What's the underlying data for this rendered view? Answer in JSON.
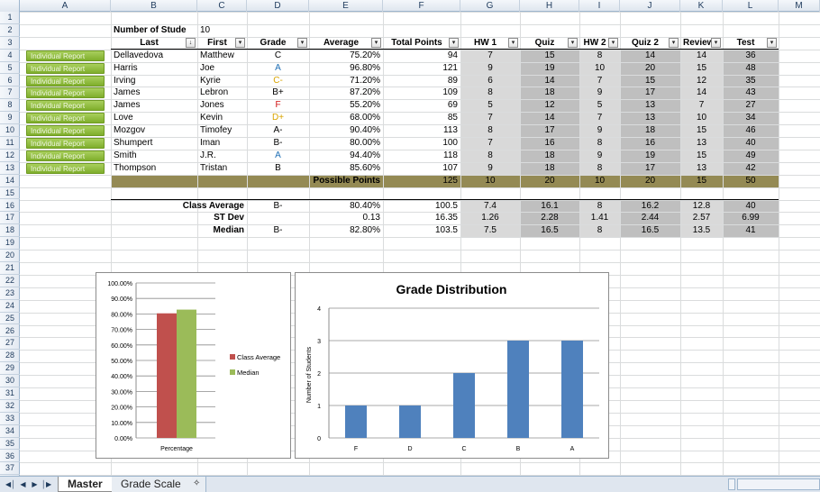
{
  "columns": [
    "A",
    "B",
    "C",
    "D",
    "E",
    "F",
    "G",
    "H",
    "I",
    "J",
    "K",
    "L",
    "M"
  ],
  "rows": [
    "1",
    "2",
    "3",
    "4",
    "5",
    "6",
    "7",
    "8",
    "9",
    "10",
    "11",
    "12",
    "13",
    "14",
    "15",
    "16",
    "17",
    "18",
    "19",
    "20",
    "21",
    "22",
    "23",
    "24",
    "25",
    "26",
    "27",
    "28",
    "29",
    "30",
    "31",
    "32",
    "33",
    "34",
    "35",
    "36",
    "37"
  ],
  "label_num_students": "Number of Stude",
  "num_students": "10",
  "headers": [
    "Last",
    "First",
    "Grade",
    "Average",
    "Total Points",
    "HW 1",
    "Quiz",
    "HW 2",
    "Quiz 2",
    "Review",
    "Test"
  ],
  "report_button_label": "Individual Report",
  "students": [
    {
      "last": "Dellavedova",
      "first": "Matthew",
      "grade": "C",
      "grade_color": "#000000",
      "avg": "75.20%",
      "total": "94",
      "hw1": "7",
      "quiz": "15",
      "hw2": "8",
      "quiz2": "14",
      "review": "14",
      "test": "36"
    },
    {
      "last": "Harris",
      "first": "Joe",
      "grade": "A",
      "grade_color": "#1f6fb5",
      "avg": "96.80%",
      "total": "121",
      "hw1": "9",
      "quiz": "19",
      "hw2": "10",
      "quiz2": "20",
      "review": "15",
      "test": "48"
    },
    {
      "last": "Irving",
      "first": "Kyrie",
      "grade": "C-",
      "grade_color": "#d9a400",
      "avg": "71.20%",
      "total": "89",
      "hw1": "6",
      "quiz": "14",
      "hw2": "7",
      "quiz2": "15",
      "review": "12",
      "test": "35"
    },
    {
      "last": "James",
      "first": "Lebron",
      "grade": "B+",
      "grade_color": "#000000",
      "avg": "87.20%",
      "total": "109",
      "hw1": "8",
      "quiz": "18",
      "hw2": "9",
      "quiz2": "17",
      "review": "14",
      "test": "43"
    },
    {
      "last": "James",
      "first": "Jones",
      "grade": "F",
      "grade_color": "#d01010",
      "avg": "55.20%",
      "total": "69",
      "hw1": "5",
      "quiz": "12",
      "hw2": "5",
      "quiz2": "13",
      "review": "7",
      "test": "27"
    },
    {
      "last": "Love",
      "first": "Kevin",
      "grade": "D+",
      "grade_color": "#d9a400",
      "avg": "68.00%",
      "total": "85",
      "hw1": "7",
      "quiz": "14",
      "hw2": "7",
      "quiz2": "13",
      "review": "10",
      "test": "34"
    },
    {
      "last": "Mozgov",
      "first": "Timofey",
      "grade": "A-",
      "grade_color": "#000000",
      "avg": "90.40%",
      "total": "113",
      "hw1": "8",
      "quiz": "17",
      "hw2": "9",
      "quiz2": "18",
      "review": "15",
      "test": "46"
    },
    {
      "last": "Shumpert",
      "first": "Iman",
      "grade": "B-",
      "grade_color": "#000000",
      "avg": "80.00%",
      "total": "100",
      "hw1": "7",
      "quiz": "16",
      "hw2": "8",
      "quiz2": "16",
      "review": "13",
      "test": "40"
    },
    {
      "last": "Smith",
      "first": "J.R.",
      "grade": "A",
      "grade_color": "#1f6fb5",
      "avg": "94.40%",
      "total": "118",
      "hw1": "8",
      "quiz": "18",
      "hw2": "9",
      "quiz2": "19",
      "review": "15",
      "test": "49"
    },
    {
      "last": "Thompson",
      "first": "Tristan",
      "grade": "B",
      "grade_color": "#000000",
      "avg": "85.60%",
      "total": "107",
      "hw1": "9",
      "quiz": "18",
      "hw2": "8",
      "quiz2": "17",
      "review": "13",
      "test": "42"
    }
  ],
  "possible_points": {
    "label": "Possible Points",
    "total": "125",
    "hw1": "10",
    "quiz": "20",
    "hw2": "10",
    "quiz2": "20",
    "review": "15",
    "test": "50"
  },
  "stats": [
    {
      "label": "Class Average",
      "grade": "B-",
      "avg": "80.40%",
      "total": "100.5",
      "hw1": "7.4",
      "quiz": "16.1",
      "hw2": "8",
      "quiz2": "16.2",
      "review": "12.8",
      "test": "40"
    },
    {
      "label": "ST Dev",
      "grade": "",
      "avg": "0.13",
      "total": "16.35",
      "hw1": "1.26",
      "quiz": "2.28",
      "hw2": "1.41",
      "quiz2": "2.44",
      "review": "2.57",
      "test": "6.99"
    },
    {
      "label": "Median",
      "grade": "B-",
      "avg": "82.80%",
      "total": "103.5",
      "hw1": "7.5",
      "quiz": "16.5",
      "hw2": "8",
      "quiz2": "16.5",
      "review": "13.5",
      "test": "41"
    }
  ],
  "chart_data": [
    {
      "type": "bar",
      "title": "",
      "categories": [
        "Percentage"
      ],
      "series": [
        {
          "name": "Class Average",
          "values": [
            0.804
          ],
          "color": "#c0504d"
        },
        {
          "name": "Median",
          "values": [
            0.828
          ],
          "color": "#9bbb59"
        }
      ],
      "ylim": [
        0,
        1
      ],
      "yticks": [
        "0.00%",
        "10.00%",
        "20.00%",
        "30.00%",
        "40.00%",
        "50.00%",
        "60.00%",
        "70.00%",
        "80.00%",
        "90.00%",
        "100.00%"
      ],
      "grid": true,
      "legend": "right"
    },
    {
      "type": "bar",
      "title": "Grade Distribution",
      "categories": [
        "F",
        "D",
        "C",
        "B",
        "A"
      ],
      "values": [
        1,
        1,
        2,
        3,
        3
      ],
      "color": "#4f81bd",
      "ylabel": "Number of Students",
      "xlabel": "",
      "ylim": [
        0,
        4
      ],
      "yticks": [
        "0",
        "1",
        "2",
        "3",
        "4"
      ],
      "grid": true
    }
  ],
  "tabs": [
    "Master",
    "Grade Scale"
  ],
  "active_tab": 0
}
